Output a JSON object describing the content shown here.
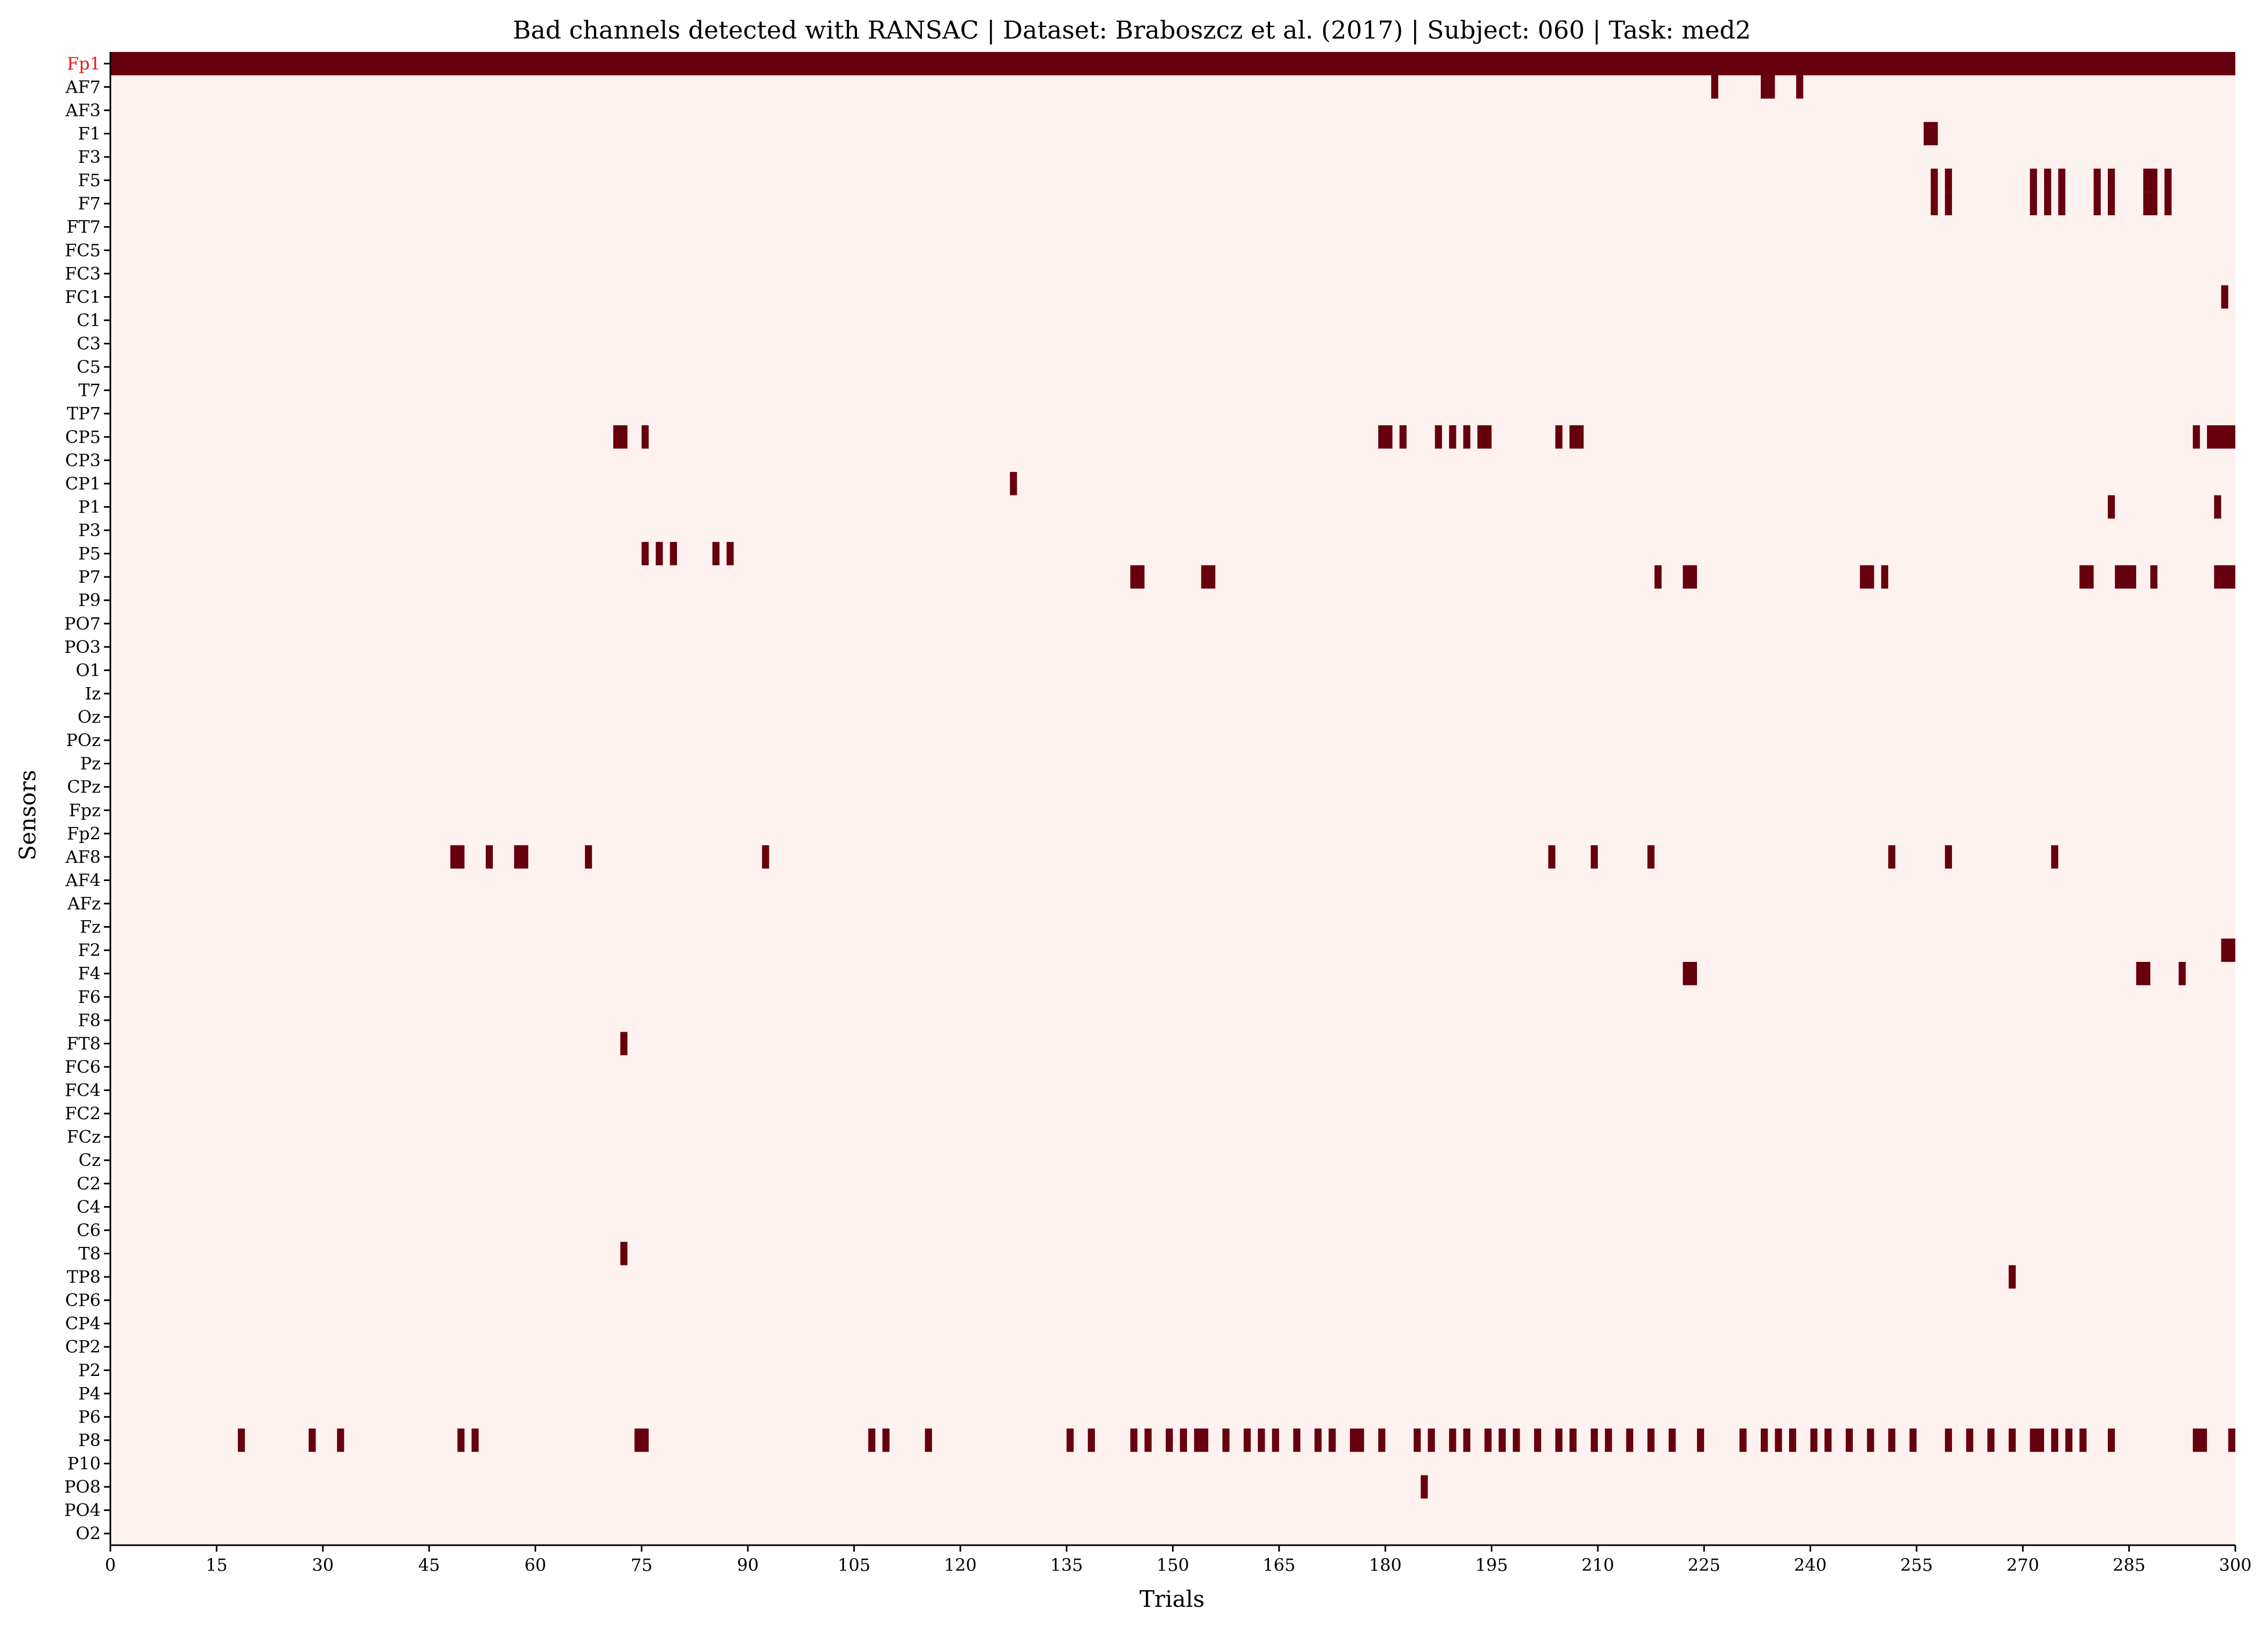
{
  "chart_data": {
    "type": "heatmap",
    "title": "Bad channels detected with RANSAC  |  Dataset: Braboszcz et al. (2017) | Subject: 060 | Task: med2",
    "xlabel": "Trials",
    "ylabel": "Sensors",
    "xlim": [
      0,
      300
    ],
    "x_ticks": [
      0,
      15,
      30,
      45,
      60,
      75,
      90,
      105,
      120,
      135,
      150,
      165,
      180,
      195,
      210,
      225,
      240,
      255,
      270,
      285,
      300
    ],
    "sensors": [
      "Fp1",
      "AF7",
      "AF3",
      "F1",
      "F3",
      "F5",
      "F7",
      "FT7",
      "FC5",
      "FC3",
      "FC1",
      "C1",
      "C3",
      "C5",
      "T7",
      "TP7",
      "CP5",
      "CP3",
      "CP1",
      "P1",
      "P3",
      "P5",
      "P7",
      "P9",
      "PO7",
      "PO3",
      "O1",
      "Iz",
      "Oz",
      "POz",
      "Pz",
      "CPz",
      "Fpz",
      "Fp2",
      "AF8",
      "AF4",
      "AFz",
      "Fz",
      "F2",
      "F4",
      "F6",
      "F8",
      "FT8",
      "FC6",
      "FC4",
      "FC2",
      "FCz",
      "Cz",
      "C2",
      "C4",
      "C6",
      "T8",
      "TP8",
      "CP6",
      "CP4",
      "CP2",
      "P2",
      "P4",
      "P6",
      "P8",
      "P10",
      "PO8",
      "PO4",
      "O2"
    ],
    "highlighted_sensors": [
      "Fp1"
    ],
    "colors": {
      "background": "#fdf2ef",
      "bad": "#67000d",
      "highlight_label": "#e31a1c",
      "text": "#000000"
    },
    "bad_segments": [
      {
        "sensor": "Fp1",
        "ranges": [
          [
            0,
            300
          ]
        ]
      },
      {
        "sensor": "AF7",
        "ranges": [
          [
            226,
            227
          ],
          [
            233,
            235
          ],
          [
            238,
            239
          ]
        ]
      },
      {
        "sensor": "F1",
        "ranges": [
          [
            256,
            258
          ]
        ]
      },
      {
        "sensor": "F5",
        "ranges": [
          [
            257,
            258
          ],
          [
            259,
            260
          ],
          [
            271,
            272
          ],
          [
            273,
            274
          ],
          [
            275,
            276
          ],
          [
            280,
            281
          ],
          [
            282,
            283
          ],
          [
            287,
            289
          ],
          [
            290,
            291
          ]
        ]
      },
      {
        "sensor": "F7",
        "ranges": [
          [
            257,
            258
          ],
          [
            259,
            260
          ],
          [
            271,
            272
          ],
          [
            273,
            274
          ],
          [
            275,
            276
          ],
          [
            280,
            281
          ],
          [
            282,
            283
          ],
          [
            287,
            289
          ],
          [
            290,
            291
          ]
        ]
      },
      {
        "sensor": "FC1",
        "ranges": [
          [
            298,
            299
          ]
        ]
      },
      {
        "sensor": "CP5",
        "ranges": [
          [
            71,
            73
          ],
          [
            75,
            76
          ],
          [
            179,
            181
          ],
          [
            182,
            183
          ],
          [
            187,
            188
          ],
          [
            189,
            190
          ],
          [
            191,
            192
          ],
          [
            193,
            195
          ],
          [
            204,
            205
          ],
          [
            206,
            208
          ],
          [
            294,
            295
          ],
          [
            296,
            300
          ]
        ]
      },
      {
        "sensor": "CP1",
        "ranges": [
          [
            127,
            128
          ]
        ]
      },
      {
        "sensor": "P1",
        "ranges": [
          [
            282,
            283
          ],
          [
            297,
            298
          ]
        ]
      },
      {
        "sensor": "P5",
        "ranges": [
          [
            75,
            76
          ],
          [
            77,
            78
          ],
          [
            79,
            80
          ],
          [
            85,
            86
          ],
          [
            87,
            88
          ]
        ]
      },
      {
        "sensor": "P7",
        "ranges": [
          [
            144,
            146
          ],
          [
            154,
            156
          ],
          [
            218,
            219
          ],
          [
            222,
            224
          ],
          [
            247,
            249
          ],
          [
            250,
            251
          ],
          [
            278,
            280
          ],
          [
            283,
            286
          ],
          [
            288,
            289
          ],
          [
            297,
            300
          ]
        ]
      },
      {
        "sensor": "AF8",
        "ranges": [
          [
            48,
            50
          ],
          [
            53,
            54
          ],
          [
            57,
            59
          ],
          [
            67,
            68
          ],
          [
            92,
            93
          ],
          [
            203,
            204
          ],
          [
            209,
            210
          ],
          [
            217,
            218
          ],
          [
            251,
            252
          ],
          [
            259,
            260
          ],
          [
            274,
            275
          ]
        ]
      },
      {
        "sensor": "F2",
        "ranges": [
          [
            298,
            300
          ]
        ]
      },
      {
        "sensor": "F4",
        "ranges": [
          [
            222,
            224
          ],
          [
            286,
            288
          ],
          [
            292,
            293
          ]
        ]
      },
      {
        "sensor": "FT8",
        "ranges": [
          [
            72,
            73
          ]
        ]
      },
      {
        "sensor": "T8",
        "ranges": [
          [
            72,
            73
          ]
        ]
      },
      {
        "sensor": "TP8",
        "ranges": [
          [
            268,
            269
          ]
        ]
      },
      {
        "sensor": "P8",
        "ranges": [
          [
            18,
            19
          ],
          [
            28,
            29
          ],
          [
            32,
            33
          ],
          [
            49,
            50
          ],
          [
            51,
            52
          ],
          [
            74,
            76
          ],
          [
            107,
            108
          ],
          [
            109,
            110
          ],
          [
            115,
            116
          ],
          [
            135,
            136
          ],
          [
            138,
            139
          ],
          [
            144,
            145
          ],
          [
            146,
            147
          ],
          [
            149,
            150
          ],
          [
            151,
            152
          ],
          [
            153,
            155
          ],
          [
            157,
            158
          ],
          [
            160,
            161
          ],
          [
            162,
            163
          ],
          [
            164,
            165
          ],
          [
            167,
            168
          ],
          [
            170,
            171
          ],
          [
            172,
            173
          ],
          [
            175,
            177
          ],
          [
            179,
            180
          ],
          [
            184,
            185
          ],
          [
            186,
            187
          ],
          [
            189,
            190
          ],
          [
            191,
            192
          ],
          [
            194,
            195
          ],
          [
            196,
            197
          ],
          [
            198,
            199
          ],
          [
            201,
            202
          ],
          [
            204,
            205
          ],
          [
            206,
            207
          ],
          [
            209,
            210
          ],
          [
            211,
            212
          ],
          [
            214,
            215
          ],
          [
            217,
            218
          ],
          [
            220,
            221
          ],
          [
            224,
            225
          ],
          [
            230,
            231
          ],
          [
            233,
            234
          ],
          [
            235,
            236
          ],
          [
            237,
            238
          ],
          [
            240,
            241
          ],
          [
            242,
            243
          ],
          [
            245,
            246
          ],
          [
            248,
            249
          ],
          [
            251,
            252
          ],
          [
            254,
            255
          ],
          [
            259,
            260
          ],
          [
            262,
            263
          ],
          [
            265,
            266
          ],
          [
            268,
            269
          ],
          [
            271,
            273
          ],
          [
            274,
            275
          ],
          [
            276,
            277
          ],
          [
            278,
            279
          ],
          [
            282,
            283
          ],
          [
            294,
            296
          ],
          [
            299,
            300
          ]
        ]
      },
      {
        "sensor": "PO8",
        "ranges": [
          [
            185,
            186
          ]
        ]
      }
    ]
  }
}
